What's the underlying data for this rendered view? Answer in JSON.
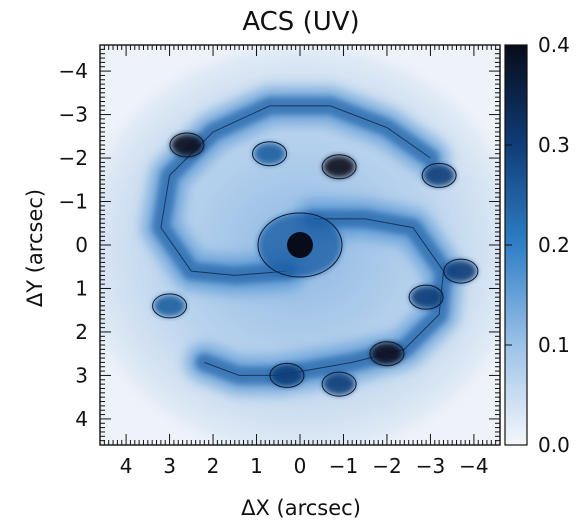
{
  "chart_data": {
    "type": "heatmap",
    "title": "ACS (UV)",
    "xlabel": "ΔX (arcsec)",
    "ylabel": "ΔY (arcsec)",
    "xlim": [
      4.6,
      -4.6
    ],
    "ylim": [
      -4.6,
      4.6
    ],
    "x_ticks": [
      4,
      3,
      2,
      1,
      0,
      -1,
      -2,
      -3,
      -4
    ],
    "y_ticks": [
      -4,
      -3,
      -2,
      -1,
      0,
      1,
      2,
      3,
      4
    ],
    "x_tick_labels": [
      "4",
      "3",
      "2",
      "1",
      "0",
      "−1",
      "−2",
      "−3",
      "−4"
    ],
    "y_tick_labels": [
      "−4",
      "−3",
      "−2",
      "−1",
      "0",
      "1",
      "2",
      "3",
      "4"
    ],
    "colorbar": {
      "range": [
        0.0,
        0.4
      ],
      "ticks": [
        0.0,
        0.1,
        0.2,
        0.3,
        0.4
      ],
      "tick_labels": [
        "0.0",
        "0.1",
        "0.2",
        "0.3",
        "0.4"
      ],
      "colors": [
        "#f4f7fb",
        "#9cc2e8",
        "#2f7fc6",
        "#0f3d78",
        "#080b1a"
      ]
    },
    "features": {
      "nucleus": {
        "x": 0.0,
        "y": 0.0,
        "value": 0.4
      },
      "spiral_arms": [
        {
          "name": "",
          "points": [
            [
              -0.3,
              -0.6
            ],
            [
              -1.5,
              -0.6
            ],
            [
              -2.6,
              -0.4
            ],
            [
              -3.3,
              0.6
            ],
            [
              -3.2,
              1.6
            ],
            [
              -2.4,
              2.4
            ],
            [
              -1.2,
              2.7
            ],
            [
              0.5,
              3.0
            ],
            [
              1.4,
              3.0
            ],
            [
              2.2,
              2.7
            ]
          ]
        },
        {
          "name": "",
          "points": [
            [
              0.3,
              0.6
            ],
            [
              1.5,
              0.7
            ],
            [
              2.5,
              0.6
            ],
            [
              3.2,
              -0.4
            ],
            [
              3.0,
              -1.6
            ],
            [
              2.0,
              -2.6
            ],
            [
              0.7,
              -3.2
            ],
            [
              -0.7,
              -3.2
            ],
            [
              -2.0,
              -2.7
            ],
            [
              -3.0,
              -2.0
            ]
          ]
        }
      ],
      "bright_regions": [
        {
          "x": -3.7,
          "y": 0.6,
          "value": 0.3
        },
        {
          "x": -2.9,
          "y": 1.2,
          "value": 0.3
        },
        {
          "x": -2.0,
          "y": 2.5,
          "value": 0.4
        },
        {
          "x": -3.2,
          "y": -1.6,
          "value": 0.3
        },
        {
          "x": 0.3,
          "y": 3.0,
          "value": 0.3
        },
        {
          "x": -0.9,
          "y": 3.2,
          "value": 0.3
        },
        {
          "x": 3.0,
          "y": 1.4,
          "value": 0.25
        },
        {
          "x": 0.7,
          "y": -2.1,
          "value": 0.25
        },
        {
          "x": -0.9,
          "y": -1.8,
          "value": 0.4
        },
        {
          "x": 2.6,
          "y": -2.3,
          "value": 0.4
        }
      ]
    }
  }
}
